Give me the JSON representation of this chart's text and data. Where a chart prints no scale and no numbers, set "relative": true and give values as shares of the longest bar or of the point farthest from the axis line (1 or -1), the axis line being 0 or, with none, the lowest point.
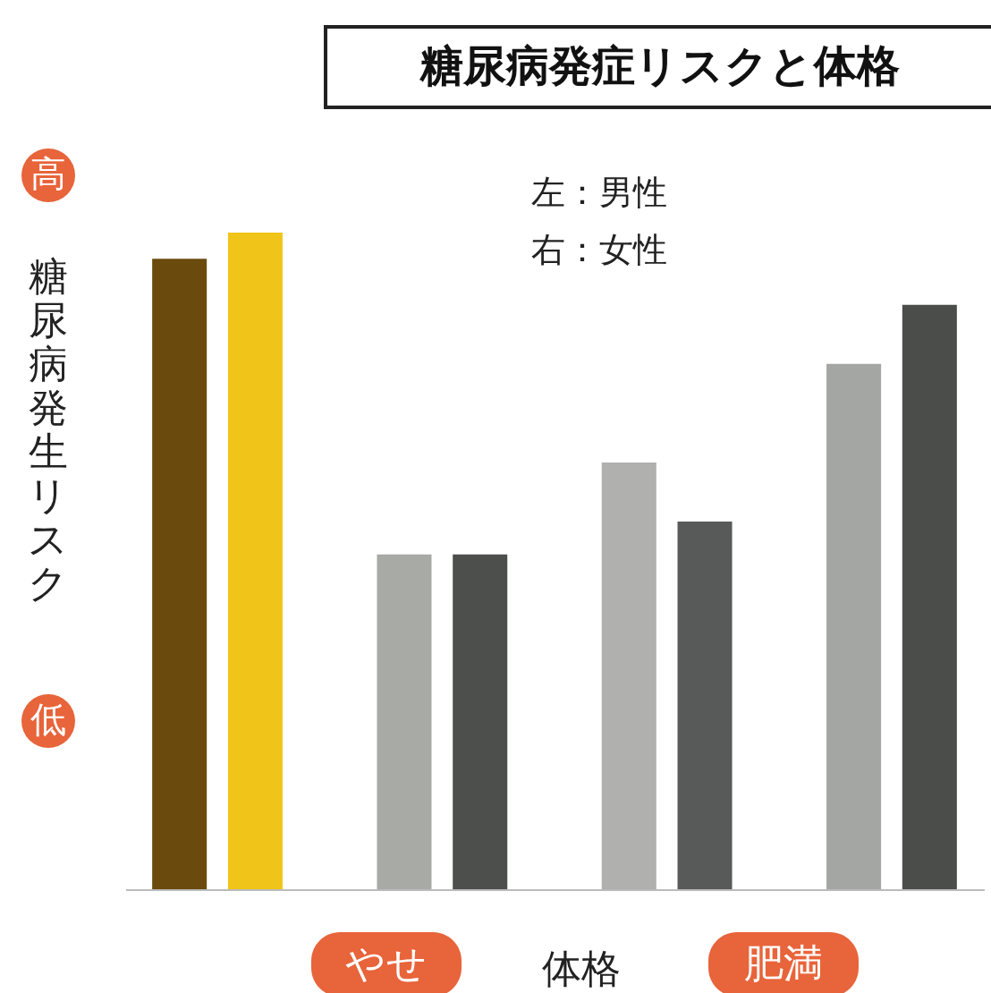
{
  "chart_data": {
    "type": "bar",
    "title": "糖尿病発症リスクと体格",
    "ylabel": "糖尿病発生リスク",
    "xlabel": "体格",
    "relative": true,
    "categories": [
      null,
      null,
      null,
      null
    ],
    "series": [
      {
        "colors": [
          "#6b4a0e",
          "#a8aaa6",
          "#b0b1ae",
          "#a3a6a3"
        ],
        "values": [
          0.96,
          0.51,
          0.65,
          0.8
        ]
      },
      {
        "colors": [
          "#f0c419",
          "#4c4f4c",
          "#575a58",
          "#4a4d4a"
        ],
        "values": [
          1,
          0.51,
          0.56,
          0.89
        ]
      }
    ],
    "annotations": [
      "左：男性",
      "右：女性",
      "高",
      "低",
      "やせ",
      "肥満"
    ]
  }
}
